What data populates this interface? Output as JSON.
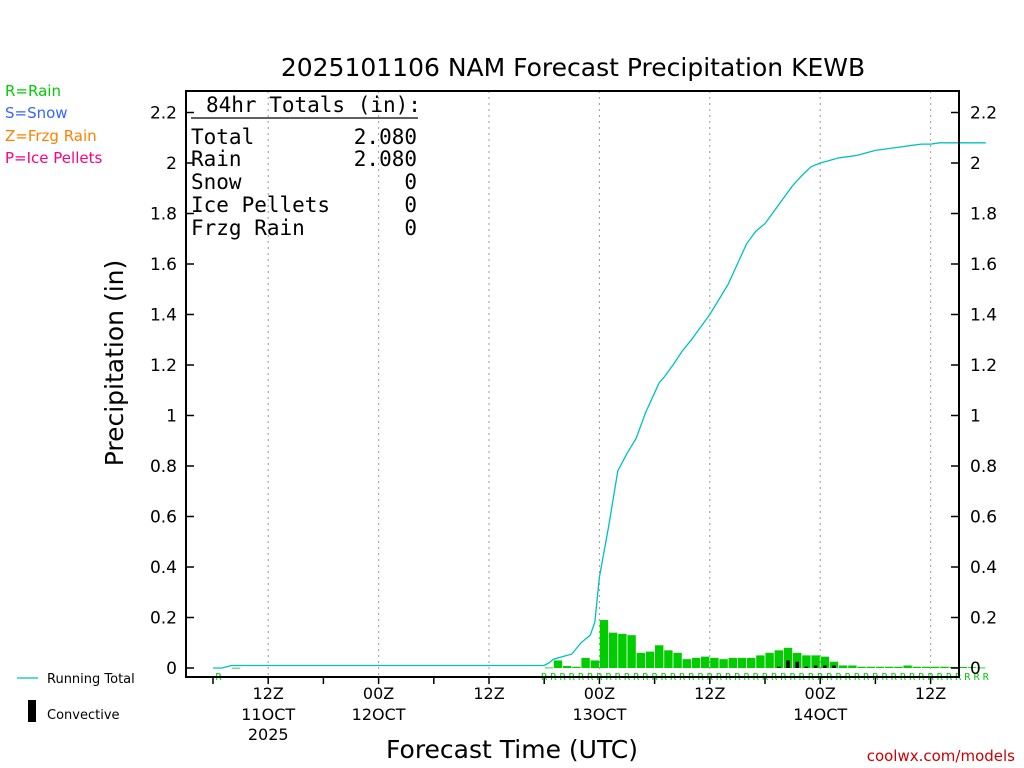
{
  "chart_data": {
    "type": "bar",
    "title": "2025101106 NAM Forecast Precipitation KEWB",
    "ylabel": "Precipitation (in)",
    "xlabel": "Forecast Time (UTC)",
    "ylim": [
      0,
      2.3
    ],
    "y_ticks": [
      "0",
      "0.2",
      "0.4",
      "0.6",
      "0.8",
      "1",
      "1.2",
      "1.4",
      "1.6",
      "1.8",
      "2",
      "2.2"
    ],
    "x_ticks": [
      {
        "hour": 6,
        "line1": "12Z",
        "line2": "11OCT",
        "line3": "2025"
      },
      {
        "hour": 18,
        "line1": "00Z",
        "line2": "12OCT",
        "line3": ""
      },
      {
        "hour": 30,
        "line1": "12Z",
        "line2": "",
        "line3": ""
      },
      {
        "hour": 42,
        "line1": "00Z",
        "line2": "13OCT",
        "line3": ""
      },
      {
        "hour": 54,
        "line1": "12Z",
        "line2": "",
        "line3": ""
      },
      {
        "hour": 66,
        "line1": "00Z",
        "line2": "14OCT",
        "line3": ""
      },
      {
        "hour": 78,
        "line1": "12Z",
        "line2": "",
        "line3": ""
      }
    ],
    "legend_types": [
      {
        "code": "R=Rain",
        "color": "#00cc00"
      },
      {
        "code": "S=Snow",
        "color": "#3366ff"
      },
      {
        "code": "Z=Frzg Rain",
        "color": "#ff8000"
      },
      {
        "code": "P=Ice Pellets",
        "color": "#ff0080"
      }
    ],
    "legend_lines": {
      "running_total": "Running Total",
      "convective": "Convective"
    },
    "totals_box": {
      "header": "84hr Totals (in):",
      "rows": [
        {
          "label": "Total",
          "value": "2.080"
        },
        {
          "label": "Rain",
          "value": "2.080"
        },
        {
          "label": "Snow",
          "value": "0"
        },
        {
          "label": "Ice Pellets",
          "value": "0"
        },
        {
          "label": "Frzg Rain",
          "value": "0"
        }
      ]
    },
    "series": [
      {
        "name": "Running Total",
        "color": "#00c0c0",
        "points": [
          [
            0,
            0
          ],
          [
            1,
            0
          ],
          [
            2,
            0.01
          ],
          [
            3,
            0.01
          ],
          [
            6,
            0.01
          ],
          [
            18,
            0.01
          ],
          [
            30,
            0.01
          ],
          [
            36,
            0.01
          ],
          [
            36.5,
            0.02
          ],
          [
            37,
            0.035
          ],
          [
            38,
            0.045
          ],
          [
            39,
            0.055
          ],
          [
            40,
            0.1
          ],
          [
            41,
            0.13
          ],
          [
            41.5,
            0.18
          ],
          [
            42,
            0.36
          ],
          [
            43,
            0.56
          ],
          [
            44,
            0.78
          ],
          [
            45,
            0.85
          ],
          [
            46,
            0.91
          ],
          [
            47,
            1.01
          ],
          [
            48,
            1.09
          ],
          [
            48.5,
            1.13
          ],
          [
            49,
            1.15
          ],
          [
            50,
            1.2
          ],
          [
            51,
            1.255
          ],
          [
            52,
            1.3
          ],
          [
            53,
            1.35
          ],
          [
            54,
            1.4
          ],
          [
            55,
            1.46
          ],
          [
            56,
            1.52
          ],
          [
            57,
            1.6
          ],
          [
            58,
            1.68
          ],
          [
            59,
            1.73
          ],
          [
            60,
            1.76
          ],
          [
            61,
            1.81
          ],
          [
            62,
            1.86
          ],
          [
            63,
            1.91
          ],
          [
            64,
            1.95
          ],
          [
            65,
            1.985
          ],
          [
            66,
            2.0
          ],
          [
            67,
            2.01
          ],
          [
            68,
            2.02
          ],
          [
            69,
            2.025
          ],
          [
            70,
            2.03
          ],
          [
            71,
            2.04
          ],
          [
            72,
            2.05
          ],
          [
            73,
            2.055
          ],
          [
            74,
            2.06
          ],
          [
            75,
            2.065
          ],
          [
            76,
            2.07
          ],
          [
            77,
            2.075
          ],
          [
            78,
            2.075
          ],
          [
            79,
            2.08
          ],
          [
            80,
            2.08
          ],
          [
            81,
            2.08
          ],
          [
            82,
            2.08
          ],
          [
            84,
            2.08
          ]
        ]
      },
      {
        "name": "Rain",
        "color": "#00cc00",
        "start_hour": 0,
        "values": [
          0,
          0,
          0.001,
          0,
          0,
          0,
          0,
          0,
          0,
          0,
          0,
          0,
          0,
          0,
          0,
          0,
          0,
          0,
          0,
          0,
          0,
          0,
          0,
          0,
          0,
          0,
          0,
          0,
          0,
          0,
          0,
          0,
          0,
          0,
          0,
          0,
          0.002,
          0.03,
          0.008,
          0.005,
          0.04,
          0.03,
          0.19,
          0.14,
          0.135,
          0.13,
          0.06,
          0.065,
          0.09,
          0.07,
          0.06,
          0.035,
          0.04,
          0.045,
          0.04,
          0.035,
          0.04,
          0.04,
          0.04,
          0.05,
          0.06,
          0.07,
          0.08,
          0.06,
          0.05,
          0.05,
          0.045,
          0.025,
          0.01,
          0.01,
          0.005,
          0.005,
          0.005,
          0.005,
          0.005,
          0.01,
          0.005,
          0.005,
          0.005,
          0.005,
          0.004,
          0.004,
          0.003,
          0.002
        ]
      },
      {
        "name": "Convective",
        "color": "#000000",
        "start_hour": 0,
        "values": [
          0,
          0,
          0,
          0,
          0,
          0,
          0,
          0,
          0,
          0,
          0,
          0,
          0,
          0,
          0,
          0,
          0,
          0,
          0,
          0,
          0,
          0,
          0,
          0,
          0,
          0,
          0,
          0,
          0,
          0,
          0,
          0,
          0,
          0,
          0,
          0,
          0,
          0,
          0,
          0,
          0,
          0,
          0,
          0,
          0,
          0,
          0,
          0,
          0,
          0,
          0,
          0,
          0,
          0,
          0,
          0,
          0,
          0,
          0,
          0,
          0,
          0.005,
          0.03,
          0.025,
          0.005,
          0.01,
          0.01,
          0.01,
          0,
          0,
          0,
          0,
          0,
          0,
          0,
          0,
          0,
          0,
          0,
          0,
          0,
          0,
          0,
          0
        ]
      }
    ],
    "type_marker_row": {
      "single_r": {
        "hour": 3,
        "char": "R"
      },
      "run_start": 36,
      "run_end": 84,
      "char": "R"
    }
  },
  "footer": "coolwx.com/models"
}
